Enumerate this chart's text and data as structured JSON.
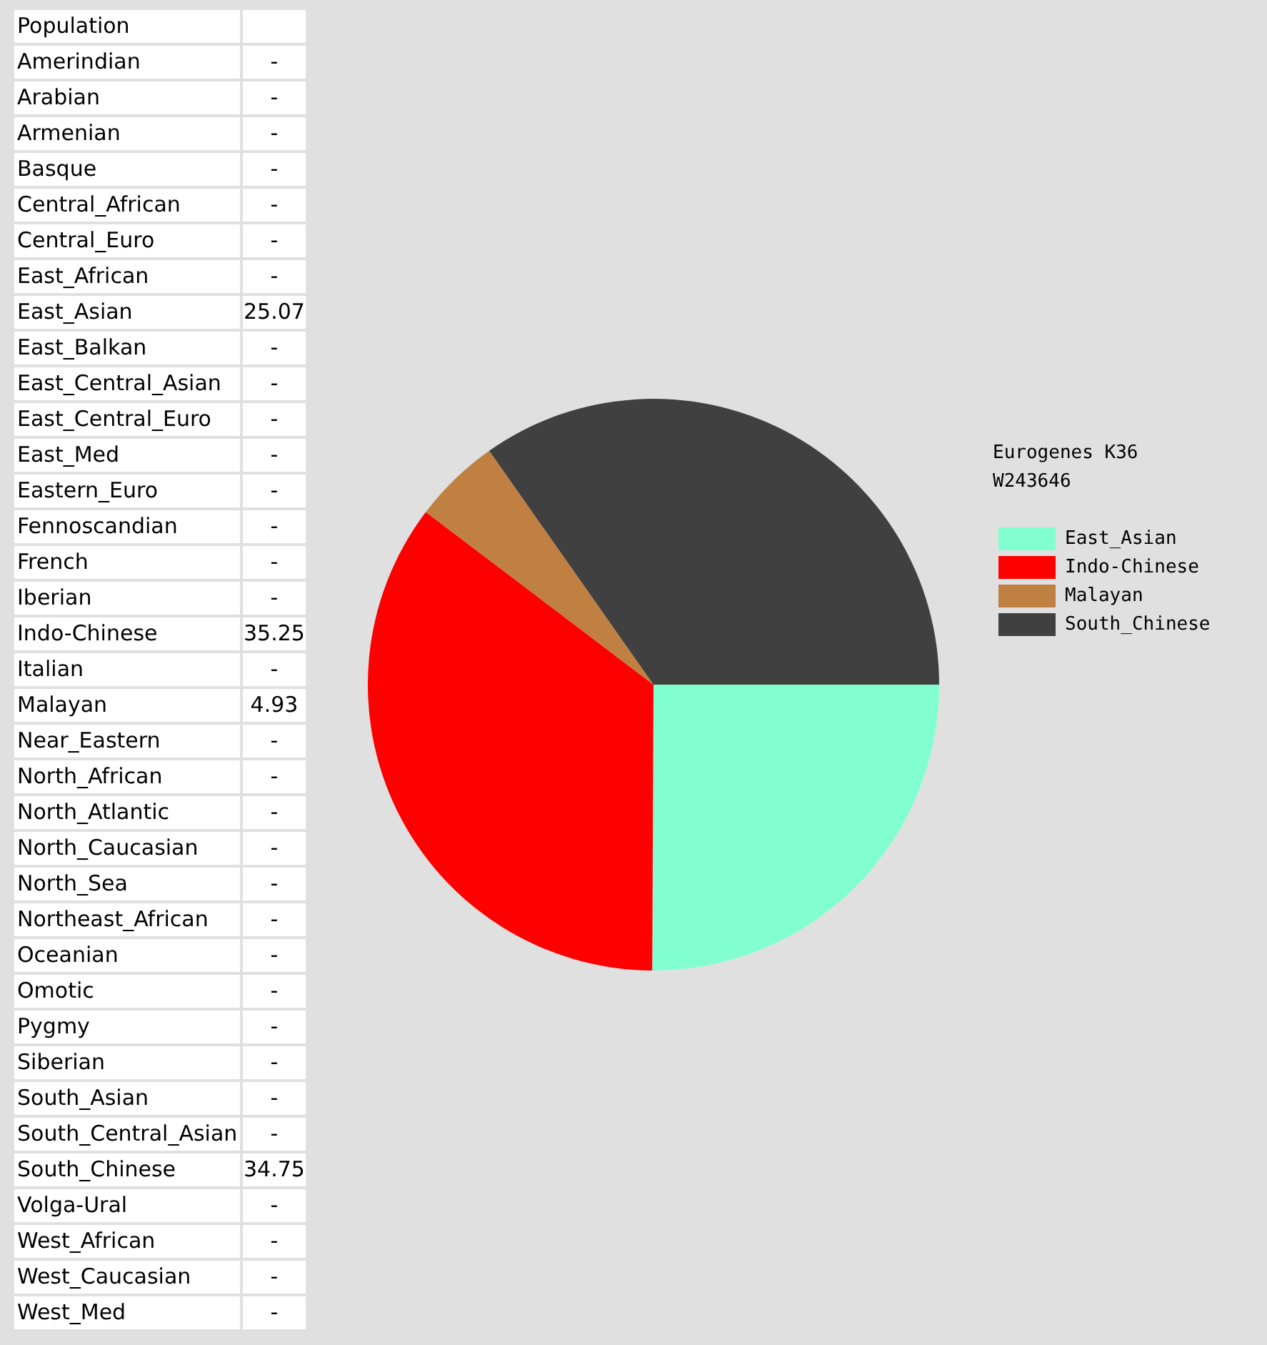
{
  "chart_data": [
    {
      "type": "other",
      "annotations": [
        "Population"
      ],
      "categories": [
        "Amerindian",
        "Arabian",
        "Armenian",
        "Basque",
        "Central_African",
        "Central_Euro",
        "East_African",
        "East_Asian",
        "East_Balkan",
        "East_Central_Asian",
        "East_Central_Euro",
        "East_Med",
        "Eastern_Euro",
        "Fennoscandian",
        "French",
        "Iberian",
        "Indo-Chinese",
        "Italian",
        "Malayan",
        "Near_Eastern",
        "North_African",
        "North_Atlantic",
        "North_Caucasian",
        "North_Sea",
        "Northeast_African",
        "Oceanian",
        "Omotic",
        "Pygmy",
        "Siberian",
        "South_Asian",
        "South_Central_Asian",
        "South_Chinese",
        "Volga-Ural",
        "West_African",
        "West_Caucasian",
        "West_Med"
      ],
      "value_labels": [
        "-",
        "-",
        "-",
        "-",
        "-",
        "-",
        "-",
        "25.07",
        "-",
        "-",
        "-",
        "-",
        "-",
        "-",
        "-",
        "-",
        "35.25",
        "-",
        "4.93",
        "-",
        "-",
        "-",
        "-",
        "-",
        "-",
        "-",
        "-",
        "-",
        "-",
        "-",
        "-",
        "34.75",
        "-",
        "-",
        "-",
        "-"
      ]
    },
    {
      "type": "pie",
      "title": "Eurogenes K36",
      "subtitle": "W243646",
      "legend": "right",
      "categories": [
        "East_Asian",
        "Indo-Chinese",
        "Malayan",
        "South_Chinese"
      ],
      "values": [
        25.07,
        35.25,
        4.93,
        34.75
      ],
      "colors": [
        "#82ffd0",
        "#ff0000",
        "#c08042",
        "#404040"
      ]
    }
  ]
}
